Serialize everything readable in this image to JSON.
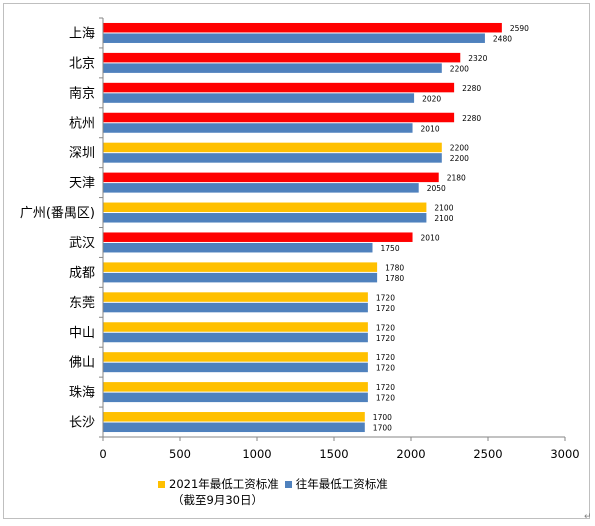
{
  "chart_data": {
    "type": "bar",
    "orientation": "horizontal",
    "categories": [
      "上海",
      "北京",
      "南京",
      "杭州",
      "深圳",
      "天津",
      "广州(番禺区)",
      "武汉",
      "成都",
      "东莞",
      "中山",
      "佛山",
      "珠海",
      "长沙"
    ],
    "series": [
      {
        "name": "2021年最低工资标准",
        "values": [
          2590,
          2320,
          2280,
          2280,
          2200,
          2180,
          2100,
          2010,
          1780,
          1720,
          1720,
          1720,
          1720,
          1700
        ],
        "point_colors": [
          "#ff0000",
          "#ff0000",
          "#ff0000",
          "#ff0000",
          "#ffc000",
          "#ff0000",
          "#ffc000",
          "#ff0000",
          "#ffc000",
          "#ffc000",
          "#ffc000",
          "#ffc000",
          "#ffc000",
          "#ffc000"
        ]
      },
      {
        "name": "往年最低工资标准",
        "values": [
          2480,
          2200,
          2020,
          2010,
          2200,
          2050,
          2100,
          1750,
          1780,
          1720,
          1720,
          1720,
          1720,
          1700
        ],
        "color": "#4f81bd"
      }
    ],
    "data_labels": true,
    "xlim": [
      0,
      3000
    ],
    "xticks": [
      0,
      500,
      1000,
      1500,
      2000,
      2500,
      3000
    ],
    "grid": false,
    "legend_position": "bottom"
  },
  "legend": {
    "current_label": "2021年最低工资标准",
    "current_color": "#ffc000",
    "previous_label": "往年最低工资标准",
    "previous_color": "#4f81bd",
    "note": "（截至9月30日）"
  }
}
